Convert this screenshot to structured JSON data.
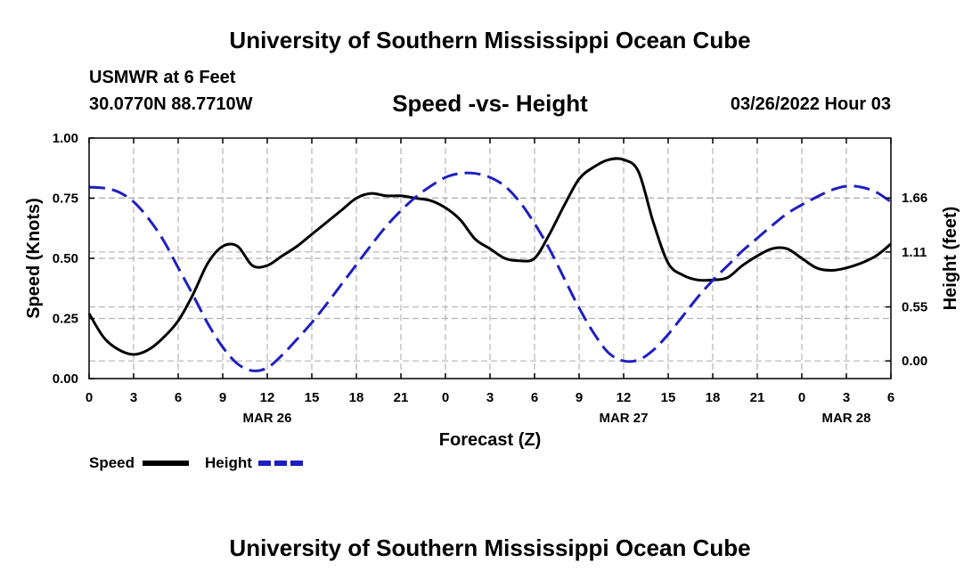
{
  "header": {
    "title": "University of Southern Mississippi Ocean Cube",
    "station": "USMWR at 6 Feet",
    "coords": "30.0770N  88.7710W",
    "subtitle": "Speed -vs- Height",
    "datestamp": "03/26/2022 Hour 03",
    "footer_title": "University of Southern Mississippi Ocean Cube"
  },
  "chart_data": {
    "type": "line",
    "title": "Speed -vs- Height",
    "xlabel": "Forecast (Z)",
    "ylabel": "Speed (Knots)",
    "y2label": "Height (feet)",
    "x_tick_labels": [
      "0",
      "3",
      "6",
      "9",
      "12",
      "15",
      "18",
      "21",
      "0",
      "3",
      "6",
      "9",
      "12",
      "15",
      "18",
      "21",
      "0",
      "3",
      "6"
    ],
    "date_labels": [
      {
        "label": "MAR 26",
        "tick_index": 4
      },
      {
        "label": "MAR 27",
        "tick_index": 12
      },
      {
        "label": "MAR 28",
        "tick_index": 17
      }
    ],
    "x_unit": "hours since 00Z Mar 26 (axis printed as hour of day)",
    "xlim": [
      0,
      54
    ],
    "ylim": [
      0,
      1.0
    ],
    "y_ticks": [
      "0.00",
      "0.25",
      "0.50",
      "0.75",
      "1.00"
    ],
    "y2lim": [
      -0.18,
      2.27
    ],
    "y2_ticks": [
      "0.00",
      "0.55",
      "1.11",
      "1.66"
    ],
    "grid": true,
    "legend_position": "bottom-left",
    "colors": {
      "speed": "#000000",
      "height": "#1f1fbf",
      "grid": "#b4b4b4"
    },
    "series": [
      {
        "name": "Speed",
        "axis": "left",
        "style": "solid",
        "x": [
          0,
          1,
          2,
          3,
          4,
          5,
          6,
          7,
          8,
          9,
          10,
          11,
          12,
          13,
          14,
          15,
          16,
          17,
          18,
          19,
          20,
          21,
          22,
          23,
          24,
          25,
          26,
          27,
          28,
          29,
          30,
          31,
          32,
          33,
          34,
          35,
          36,
          37,
          38,
          39,
          40,
          41,
          42,
          43,
          44,
          45,
          46,
          47,
          48,
          49,
          50,
          51,
          52,
          53,
          54
        ],
        "values": [
          0.27,
          0.17,
          0.12,
          0.1,
          0.12,
          0.17,
          0.24,
          0.35,
          0.48,
          0.55,
          0.55,
          0.47,
          0.47,
          0.51,
          0.55,
          0.6,
          0.65,
          0.7,
          0.75,
          0.77,
          0.76,
          0.76,
          0.75,
          0.74,
          0.71,
          0.66,
          0.58,
          0.54,
          0.5,
          0.49,
          0.5,
          0.6,
          0.72,
          0.83,
          0.88,
          0.91,
          0.91,
          0.86,
          0.65,
          0.48,
          0.43,
          0.41,
          0.41,
          0.42,
          0.47,
          0.51,
          0.54,
          0.54,
          0.5,
          0.46,
          0.45,
          0.46,
          0.48,
          0.51,
          0.56
        ]
      },
      {
        "name": "Height",
        "axis": "right",
        "style": "dashed",
        "x": [
          0,
          1,
          2,
          3,
          4,
          5,
          6,
          7,
          8,
          9,
          10,
          11,
          12,
          13,
          14,
          15,
          16,
          17,
          18,
          19,
          20,
          21,
          22,
          23,
          24,
          25,
          26,
          27,
          28,
          29,
          30,
          31,
          32,
          33,
          34,
          35,
          36,
          37,
          38,
          39,
          40,
          41,
          42,
          43,
          44,
          45,
          46,
          47,
          48,
          49,
          50,
          51,
          52,
          53,
          54
        ],
        "values": [
          1.77,
          1.76,
          1.72,
          1.62,
          1.45,
          1.23,
          0.95,
          0.67,
          0.38,
          0.14,
          -0.03,
          -0.1,
          -0.07,
          0.06,
          0.22,
          0.39,
          0.58,
          0.78,
          0.98,
          1.18,
          1.37,
          1.53,
          1.67,
          1.78,
          1.87,
          1.91,
          1.91,
          1.87,
          1.78,
          1.62,
          1.4,
          1.14,
          0.84,
          0.54,
          0.28,
          0.08,
          0.0,
          0.01,
          0.11,
          0.27,
          0.46,
          0.65,
          0.82,
          0.97,
          1.12,
          1.25,
          1.38,
          1.5,
          1.59,
          1.67,
          1.74,
          1.78,
          1.77,
          1.72,
          1.62
        ]
      }
    ]
  }
}
